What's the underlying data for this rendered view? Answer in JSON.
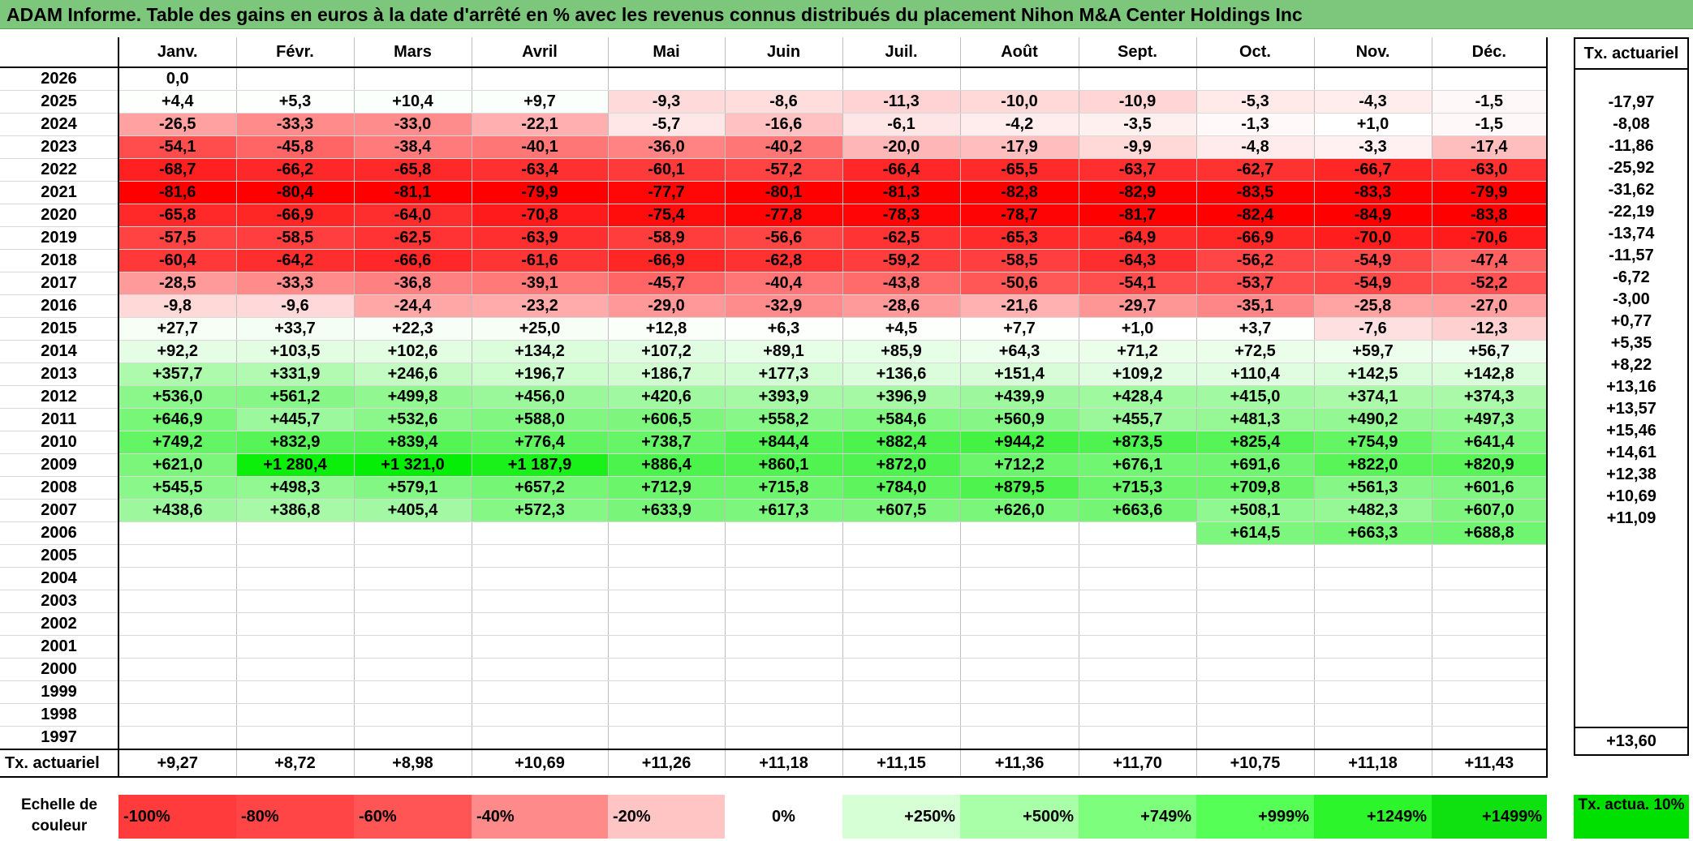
{
  "title": "ADAM Informe. Table des gains en euros à la date d'arrêté en % avec les revenus connus distribués du placement Nihon M&A Center Holdings Inc",
  "months": [
    "Janv.",
    "Févr.",
    "Mars",
    "Avril",
    "Mai",
    "Juin",
    "Juil.",
    "Août",
    "Sept.",
    "Oct.",
    "Nov.",
    "Déc."
  ],
  "annual_header": "Tx. actuariel",
  "rows": [
    {
      "year": "2026",
      "values": [
        "0,0",
        "",
        "",
        "",
        "",
        "",
        "",
        "",
        "",
        "",
        "",
        ""
      ],
      "annual": ""
    },
    {
      "year": "2025",
      "values": [
        "+4,4",
        "+5,3",
        "+10,4",
        "+9,7",
        "-9,3",
        "-8,6",
        "-11,3",
        "-10,0",
        "-10,9",
        "-5,3",
        "-4,3",
        "-1,5"
      ],
      "annual": "-17,97"
    },
    {
      "year": "2024",
      "values": [
        "-26,5",
        "-33,3",
        "-33,0",
        "-22,1",
        "-5,7",
        "-16,6",
        "-6,1",
        "-4,2",
        "-3,5",
        "-1,3",
        "+1,0",
        "-1,5"
      ],
      "annual": "-8,08"
    },
    {
      "year": "2023",
      "values": [
        "-54,1",
        "-45,8",
        "-38,4",
        "-40,1",
        "-36,0",
        "-40,2",
        "-20,0",
        "-17,9",
        "-9,9",
        "-4,8",
        "-3,3",
        "-17,4"
      ],
      "annual": "-11,86"
    },
    {
      "year": "2022",
      "values": [
        "-68,7",
        "-66,2",
        "-65,8",
        "-63,4",
        "-60,1",
        "-57,2",
        "-66,4",
        "-65,5",
        "-63,7",
        "-62,7",
        "-66,7",
        "-63,0"
      ],
      "annual": "-25,92"
    },
    {
      "year": "2021",
      "values": [
        "-81,6",
        "-80,4",
        "-81,1",
        "-79,9",
        "-77,7",
        "-80,1",
        "-81,3",
        "-82,8",
        "-82,9",
        "-83,5",
        "-83,3",
        "-79,9"
      ],
      "annual": "-31,62"
    },
    {
      "year": "2020",
      "values": [
        "-65,8",
        "-66,9",
        "-64,0",
        "-70,8",
        "-75,4",
        "-77,8",
        "-78,3",
        "-78,7",
        "-81,7",
        "-82,4",
        "-84,9",
        "-83,8"
      ],
      "annual": "-22,19"
    },
    {
      "year": "2019",
      "values": [
        "-57,5",
        "-58,5",
        "-62,5",
        "-63,9",
        "-58,9",
        "-56,6",
        "-62,5",
        "-65,3",
        "-64,9",
        "-66,9",
        "-70,0",
        "-70,6"
      ],
      "annual": "-13,74"
    },
    {
      "year": "2018",
      "values": [
        "-60,4",
        "-64,2",
        "-66,6",
        "-61,6",
        "-66,9",
        "-62,8",
        "-59,2",
        "-58,5",
        "-64,3",
        "-56,2",
        "-54,9",
        "-47,4"
      ],
      "annual": "-11,57"
    },
    {
      "year": "2017",
      "values": [
        "-28,5",
        "-33,3",
        "-36,8",
        "-39,1",
        "-45,7",
        "-40,4",
        "-43,8",
        "-50,6",
        "-54,1",
        "-53,7",
        "-54,9",
        "-52,2"
      ],
      "annual": "-6,72"
    },
    {
      "year": "2016",
      "values": [
        "-9,8",
        "-9,6",
        "-24,4",
        "-23,2",
        "-29,0",
        "-32,9",
        "-28,6",
        "-21,6",
        "-29,7",
        "-35,1",
        "-25,8",
        "-27,0"
      ],
      "annual": "-3,00"
    },
    {
      "year": "2015",
      "values": [
        "+27,7",
        "+33,7",
        "+22,3",
        "+25,0",
        "+12,8",
        "+6,3",
        "+4,5",
        "+7,7",
        "+1,0",
        "+3,7",
        "-7,6",
        "-12,3"
      ],
      "annual": "+0,77"
    },
    {
      "year": "2014",
      "values": [
        "+92,2",
        "+103,5",
        "+102,6",
        "+134,2",
        "+107,2",
        "+89,1",
        "+85,9",
        "+64,3",
        "+71,2",
        "+72,5",
        "+59,7",
        "+56,7"
      ],
      "annual": "+5,35"
    },
    {
      "year": "2013",
      "values": [
        "+357,7",
        "+331,9",
        "+246,6",
        "+196,7",
        "+186,7",
        "+177,3",
        "+136,6",
        "+151,4",
        "+109,2",
        "+110,4",
        "+142,5",
        "+142,8"
      ],
      "annual": "+8,22"
    },
    {
      "year": "2012",
      "values": [
        "+536,0",
        "+561,2",
        "+499,8",
        "+456,0",
        "+420,6",
        "+393,9",
        "+396,9",
        "+439,9",
        "+428,4",
        "+415,0",
        "+374,1",
        "+374,3"
      ],
      "annual": "+13,16"
    },
    {
      "year": "2011",
      "values": [
        "+646,9",
        "+445,7",
        "+532,6",
        "+588,0",
        "+606,5",
        "+558,2",
        "+584,6",
        "+560,9",
        "+455,7",
        "+481,3",
        "+490,2",
        "+497,3"
      ],
      "annual": "+13,57"
    },
    {
      "year": "2010",
      "values": [
        "+749,2",
        "+832,9",
        "+839,4",
        "+776,4",
        "+738,7",
        "+844,4",
        "+882,4",
        "+944,2",
        "+873,5",
        "+825,4",
        "+754,9",
        "+641,4"
      ],
      "annual": "+15,46"
    },
    {
      "year": "2009",
      "values": [
        "+621,0",
        "+1 280,4",
        "+1 321,0",
        "+1 187,9",
        "+886,4",
        "+860,1",
        "+872,0",
        "+712,2",
        "+676,1",
        "+691,6",
        "+822,0",
        "+820,9"
      ],
      "annual": "+14,61"
    },
    {
      "year": "2008",
      "values": [
        "+545,5",
        "+498,3",
        "+579,1",
        "+657,2",
        "+712,9",
        "+715,8",
        "+784,0",
        "+879,5",
        "+715,3",
        "+709,8",
        "+561,3",
        "+601,6"
      ],
      "annual": "+12,38"
    },
    {
      "year": "2007",
      "values": [
        "+438,6",
        "+386,8",
        "+405,4",
        "+572,3",
        "+633,9",
        "+617,3",
        "+607,5",
        "+626,0",
        "+663,6",
        "+508,1",
        "+482,3",
        "+607,0"
      ],
      "annual": "+10,69"
    },
    {
      "year": "2006",
      "values": [
        "",
        "",
        "",
        "",
        "",
        "",
        "",
        "",
        "",
        "+614,5",
        "+663,3",
        "+688,8"
      ],
      "annual": "+11,09"
    },
    {
      "year": "2005",
      "values": [
        "",
        "",
        "",
        "",
        "",
        "",
        "",
        "",
        "",
        "",
        "",
        ""
      ],
      "annual": ""
    },
    {
      "year": "2004",
      "values": [
        "",
        "",
        "",
        "",
        "",
        "",
        "",
        "",
        "",
        "",
        "",
        ""
      ],
      "annual": ""
    },
    {
      "year": "2003",
      "values": [
        "",
        "",
        "",
        "",
        "",
        "",
        "",
        "",
        "",
        "",
        "",
        ""
      ],
      "annual": ""
    },
    {
      "year": "2002",
      "values": [
        "",
        "",
        "",
        "",
        "",
        "",
        "",
        "",
        "",
        "",
        "",
        ""
      ],
      "annual": ""
    },
    {
      "year": "2001",
      "values": [
        "",
        "",
        "",
        "",
        "",
        "",
        "",
        "",
        "",
        "",
        "",
        ""
      ],
      "annual": ""
    },
    {
      "year": "2000",
      "values": [
        "",
        "",
        "",
        "",
        "",
        "",
        "",
        "",
        "",
        "",
        "",
        ""
      ],
      "annual": ""
    },
    {
      "year": "1999",
      "values": [
        "",
        "",
        "",
        "",
        "",
        "",
        "",
        "",
        "",
        "",
        "",
        ""
      ],
      "annual": ""
    },
    {
      "year": "1998",
      "values": [
        "",
        "",
        "",
        "",
        "",
        "",
        "",
        "",
        "",
        "",
        "",
        ""
      ],
      "annual": ""
    },
    {
      "year": "1997",
      "values": [
        "",
        "",
        "",
        "",
        "",
        "",
        "",
        "",
        "",
        "",
        "",
        ""
      ],
      "annual": ""
    }
  ],
  "summary": {
    "label": "Tx. actuariel",
    "values": [
      "+9,27",
      "+8,72",
      "+8,98",
      "+10,69",
      "+11,26",
      "+11,18",
      "+11,15",
      "+11,36",
      "+11,70",
      "+10,75",
      "+11,18",
      "+11,43"
    ],
    "annual": "+13,60"
  },
  "scale": {
    "label": "Echelle de couleur",
    "items": [
      {
        "text": "-100%",
        "color": "#ff3b3b",
        "align": "l"
      },
      {
        "text": "-80%",
        "color": "#ff4545",
        "align": "l"
      },
      {
        "text": "-60%",
        "color": "#ff5555",
        "align": "l"
      },
      {
        "text": "-40%",
        "color": "#ff8a8a",
        "align": "l"
      },
      {
        "text": "-20%",
        "color": "#ffc4c4",
        "align": "l"
      },
      {
        "text": "0%",
        "color": "#ffffff",
        "align": "c"
      },
      {
        "text": "+250%",
        "color": "#d6ffd6",
        "align": "r"
      },
      {
        "text": "+500%",
        "color": "#a8ffa8",
        "align": "r"
      },
      {
        "text": "+749%",
        "color": "#7dff7d",
        "align": "r"
      },
      {
        "text": "+999%",
        "color": "#55ff55",
        "align": "r"
      },
      {
        "text": "+1249%",
        "color": "#2cf52c",
        "align": "r"
      },
      {
        "text": "+1499%",
        "color": "#0fe00f",
        "align": "r"
      }
    ],
    "side_label": "Tx. actua. 10%",
    "side_color": "#00e000"
  }
}
